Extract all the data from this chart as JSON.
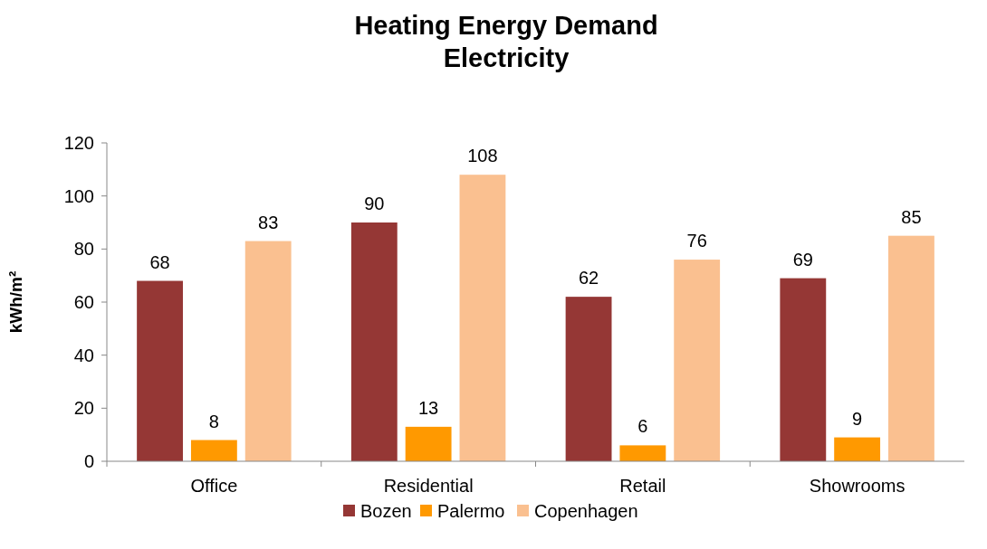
{
  "chart_data": {
    "type": "bar",
    "title": "Heating Energy Demand\nElectricity",
    "ylabel": "kWh/m²",
    "categories": [
      "Office",
      "Residential",
      "Retail",
      "Showrooms"
    ],
    "series": [
      {
        "name": "Bozen",
        "color": "#953735",
        "values": [
          68,
          90,
          62,
          69
        ]
      },
      {
        "name": "Palermo",
        "color": "#ff9900",
        "values": [
          8,
          13,
          6,
          9
        ]
      },
      {
        "name": "Copenhagen",
        "color": "#fac090",
        "values": [
          83,
          108,
          76,
          85
        ]
      }
    ],
    "ylim": [
      0,
      120
    ],
    "yticks": [
      0,
      20,
      40,
      60,
      80,
      100,
      120
    ],
    "grid": false,
    "legend": "bottom",
    "data_labels": true
  }
}
